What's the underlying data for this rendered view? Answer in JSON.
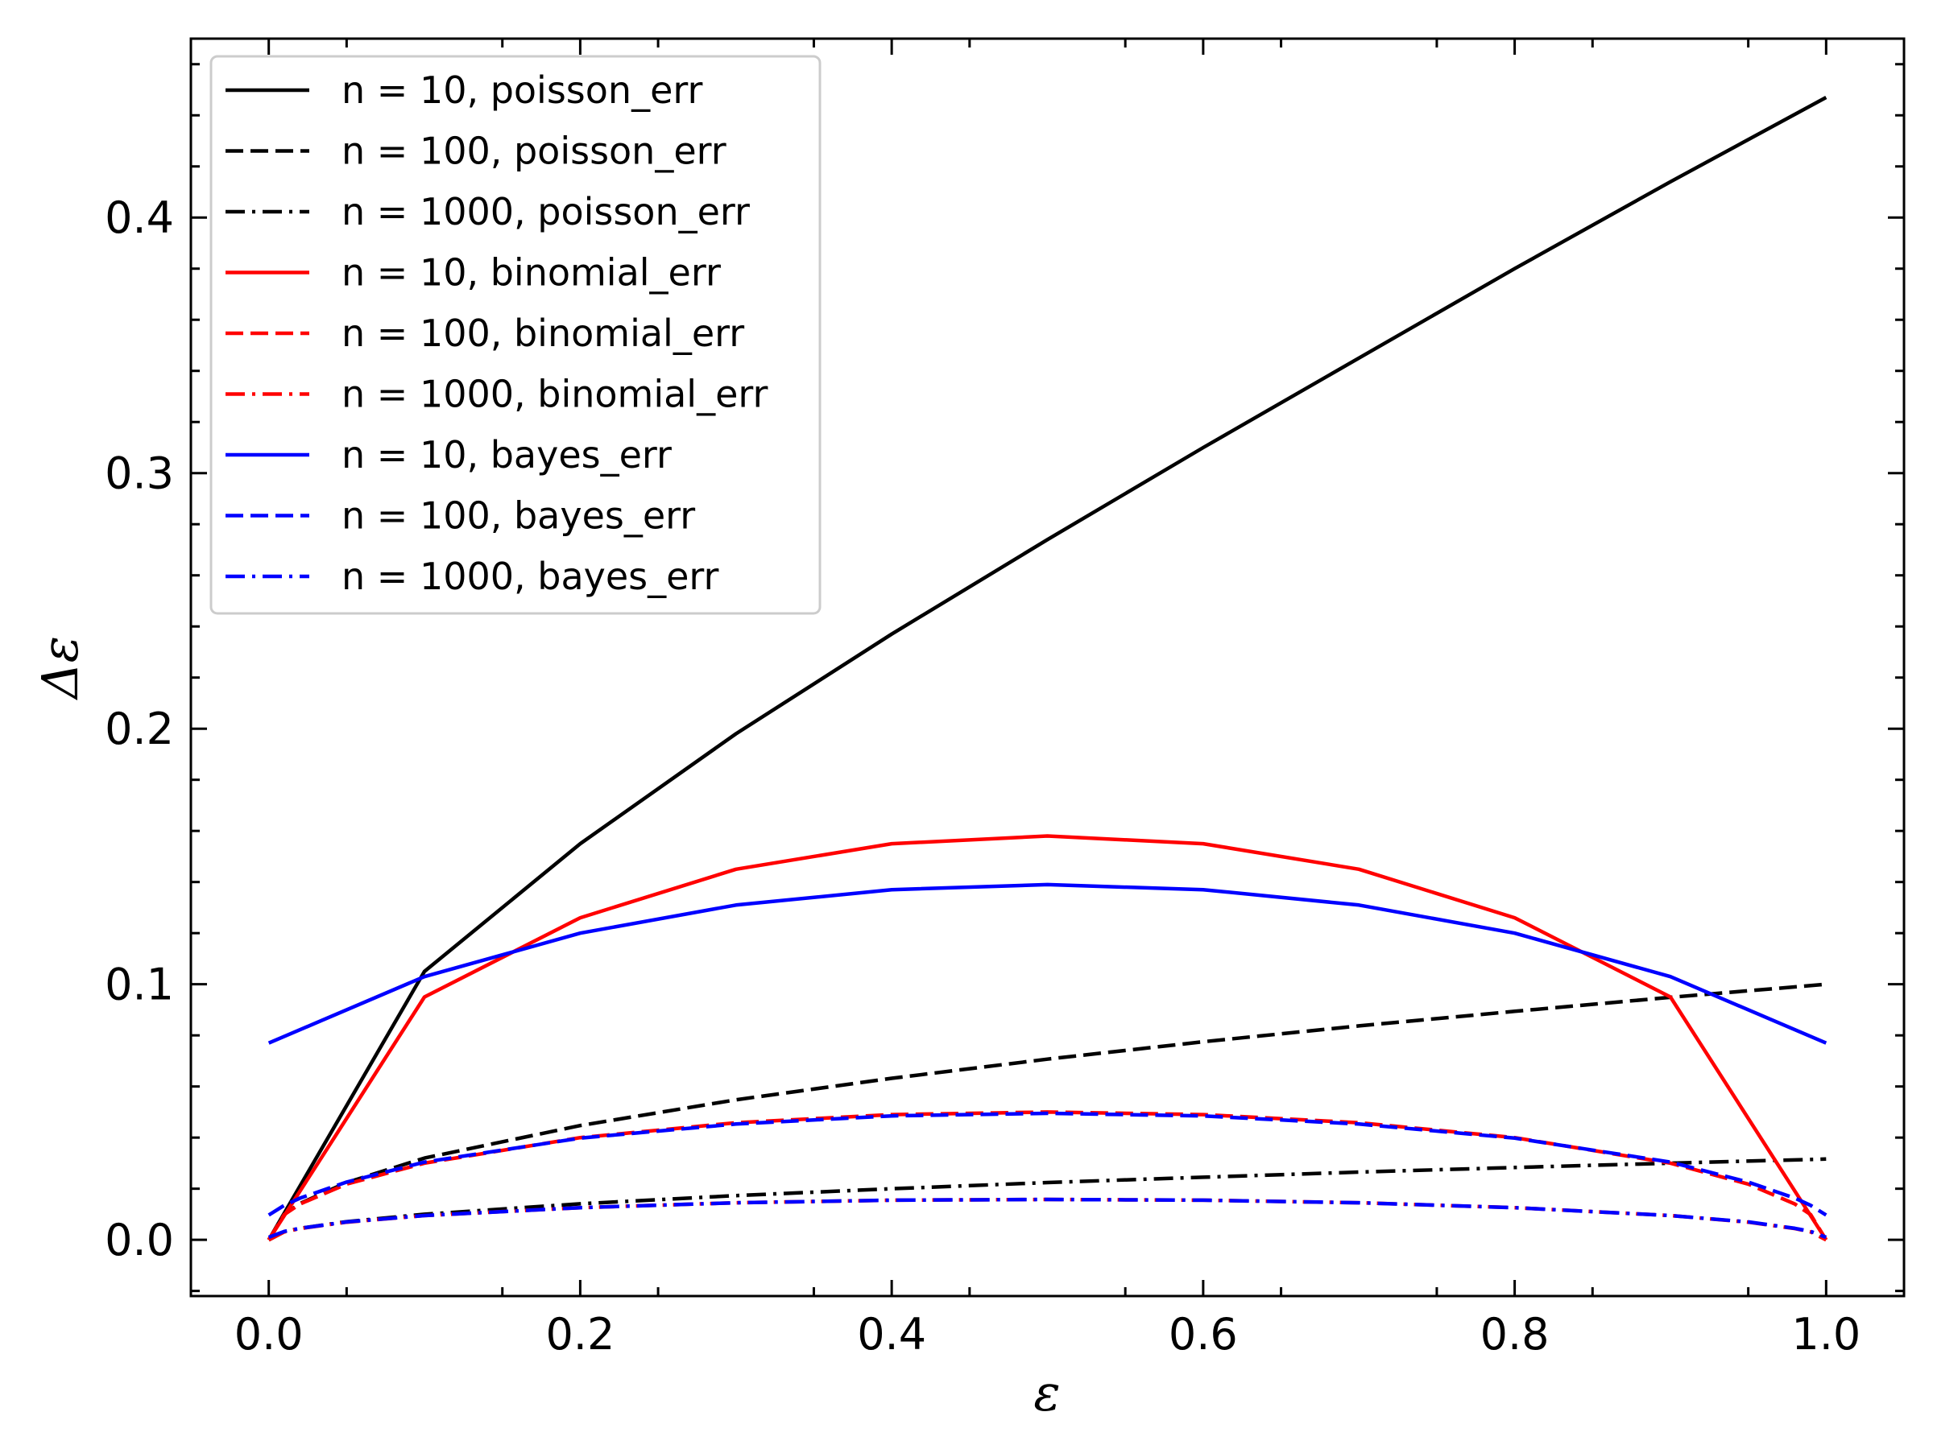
{
  "chart_data": {
    "type": "line",
    "xlabel": "ε",
    "ylabel": "Δε",
    "xlim": [
      -0.05,
      1.05
    ],
    "ylim": [
      -0.022,
      0.47
    ],
    "x_ticks": [
      0.0,
      0.2,
      0.4,
      0.6,
      0.8,
      1.0
    ],
    "x_tick_labels": [
      "0.0",
      "0.2",
      "0.4",
      "0.6",
      "0.8",
      "1.0"
    ],
    "y_ticks": [
      0.0,
      0.1,
      0.2,
      0.3,
      0.4
    ],
    "y_tick_labels": [
      "0.0",
      "0.1",
      "0.2",
      "0.3",
      "0.4"
    ],
    "grid": false,
    "legend_position": "top-left",
    "series": [
      {
        "name": "n = 10, poisson_err",
        "color": "#000000",
        "style": "solid",
        "x": [
          0.0,
          0.1,
          0.2,
          0.3,
          0.4,
          0.5,
          0.6,
          0.7,
          0.8,
          0.9,
          1.0
        ],
        "y": [
          0.0,
          0.105,
          0.155,
          0.198,
          0.237,
          0.274,
          0.31,
          0.345,
          0.38,
          0.414,
          0.447
        ]
      },
      {
        "name": "n = 100, poisson_err",
        "color": "#000000",
        "style": "dashed",
        "x": [
          0.0,
          0.01,
          0.02,
          0.05,
          0.1,
          0.2,
          0.3,
          0.4,
          0.5,
          0.6,
          0.7,
          0.8,
          0.9,
          1.0
        ],
        "y": [
          0.0,
          0.01,
          0.0142,
          0.0224,
          0.032,
          0.0447,
          0.0548,
          0.0632,
          0.0707,
          0.0775,
          0.0837,
          0.0894,
          0.0949,
          0.1
        ]
      },
      {
        "name": "n = 1000, poisson_err",
        "color": "#000000",
        "style": "dashdot",
        "x": [
          0.0,
          0.01,
          0.02,
          0.05,
          0.1,
          0.2,
          0.3,
          0.4,
          0.5,
          0.6,
          0.7,
          0.8,
          0.9,
          1.0
        ],
        "y": [
          0.0,
          0.0032,
          0.0045,
          0.0071,
          0.01,
          0.0141,
          0.0173,
          0.02,
          0.0224,
          0.0245,
          0.0265,
          0.0283,
          0.03,
          0.0316
        ]
      },
      {
        "name": "n = 10, binomial_err",
        "color": "#ff0000",
        "style": "solid",
        "x": [
          0.0,
          0.1,
          0.2,
          0.3,
          0.4,
          0.5,
          0.6,
          0.7,
          0.8,
          0.9,
          1.0
        ],
        "y": [
          0.0,
          0.095,
          0.126,
          0.145,
          0.155,
          0.158,
          0.155,
          0.145,
          0.126,
          0.095,
          0.0
        ]
      },
      {
        "name": "n = 100, binomial_err",
        "color": "#ff0000",
        "style": "dashed",
        "x": [
          0.0,
          0.01,
          0.02,
          0.05,
          0.1,
          0.2,
          0.3,
          0.4,
          0.5,
          0.6,
          0.7,
          0.8,
          0.9,
          0.95,
          0.98,
          0.99,
          1.0
        ],
        "y": [
          0.0,
          0.0099,
          0.014,
          0.0218,
          0.03,
          0.04,
          0.0458,
          0.049,
          0.05,
          0.049,
          0.0458,
          0.04,
          0.03,
          0.0218,
          0.014,
          0.0099,
          0.0
        ]
      },
      {
        "name": "n = 1000, binomial_err",
        "color": "#ff0000",
        "style": "dashdot",
        "x": [
          0.0,
          0.01,
          0.02,
          0.05,
          0.1,
          0.2,
          0.3,
          0.4,
          0.5,
          0.6,
          0.7,
          0.8,
          0.9,
          0.95,
          0.98,
          0.99,
          1.0
        ],
        "y": [
          0.0,
          0.0031,
          0.0044,
          0.0069,
          0.0095,
          0.0126,
          0.0145,
          0.0155,
          0.0158,
          0.0155,
          0.0145,
          0.0126,
          0.0095,
          0.0069,
          0.0044,
          0.0031,
          0.0
        ]
      },
      {
        "name": "n = 10, bayes_err",
        "color": "#0000ff",
        "style": "solid",
        "x": [
          0.0,
          0.1,
          0.2,
          0.3,
          0.4,
          0.5,
          0.6,
          0.7,
          0.8,
          0.9,
          1.0
        ],
        "y": [
          0.077,
          0.103,
          0.12,
          0.131,
          0.137,
          0.139,
          0.137,
          0.131,
          0.12,
          0.103,
          0.077
        ]
      },
      {
        "name": "n = 100, bayes_err",
        "color": "#0000ff",
        "style": "dashed",
        "x": [
          0.0,
          0.01,
          0.02,
          0.05,
          0.1,
          0.2,
          0.3,
          0.4,
          0.5,
          0.6,
          0.7,
          0.8,
          0.9,
          0.95,
          0.98,
          0.99,
          1.0
        ],
        "y": [
          0.0097,
          0.0135,
          0.0163,
          0.0226,
          0.0304,
          0.0398,
          0.0453,
          0.0485,
          0.0495,
          0.0485,
          0.0453,
          0.0398,
          0.0304,
          0.0226,
          0.0163,
          0.0135,
          0.0097
        ]
      },
      {
        "name": "n = 1000, bayes_err",
        "color": "#0000ff",
        "style": "dashdot",
        "x": [
          0.0,
          0.01,
          0.02,
          0.05,
          0.1,
          0.2,
          0.3,
          0.4,
          0.5,
          0.6,
          0.7,
          0.8,
          0.9,
          0.95,
          0.98,
          0.99,
          1.0
        ],
        "y": [
          0.001,
          0.0033,
          0.0045,
          0.007,
          0.0095,
          0.0126,
          0.0145,
          0.0155,
          0.0158,
          0.0155,
          0.0145,
          0.0126,
          0.0095,
          0.007,
          0.0045,
          0.0033,
          0.001
        ]
      }
    ]
  }
}
